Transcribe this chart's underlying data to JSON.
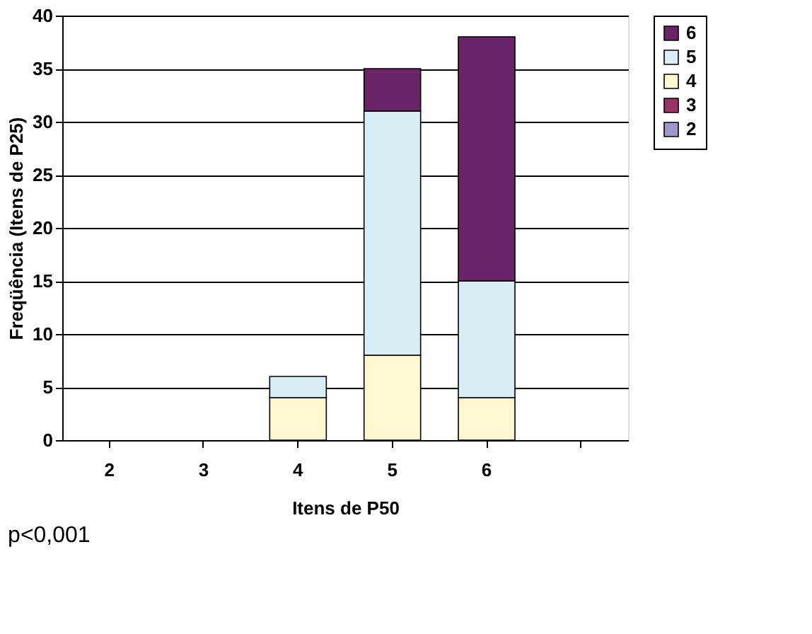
{
  "chart_data": {
    "type": "bar",
    "stacked": true,
    "xlabel": "Itens de P50",
    "ylabel": "Freqüência (Itens de P25)",
    "categories": [
      "2",
      "3",
      "4",
      "5",
      "6",
      null
    ],
    "series": [
      {
        "name": "2",
        "color": "#9999cc",
        "values": [
          0,
          0,
          0,
          0,
          0,
          0
        ]
      },
      {
        "name": "3",
        "color": "#993366",
        "values": [
          0,
          0,
          0,
          0,
          0,
          0
        ]
      },
      {
        "name": "4",
        "color": "#fff8d0",
        "values": [
          0,
          0,
          4,
          8,
          4,
          0
        ]
      },
      {
        "name": "5",
        "color": "#d8eef4",
        "values": [
          0,
          0,
          2,
          23,
          11,
          0
        ]
      },
      {
        "name": "6",
        "color": "#6b2468",
        "values": [
          0,
          0,
          0,
          4,
          23,
          0
        ]
      }
    ],
    "ylim": [
      0,
      40
    ],
    "yticks": [
      0,
      5,
      10,
      15,
      20,
      25,
      30,
      35,
      40
    ],
    "grid": "y",
    "legend": "right",
    "annotations": [
      "p<0,001"
    ]
  }
}
